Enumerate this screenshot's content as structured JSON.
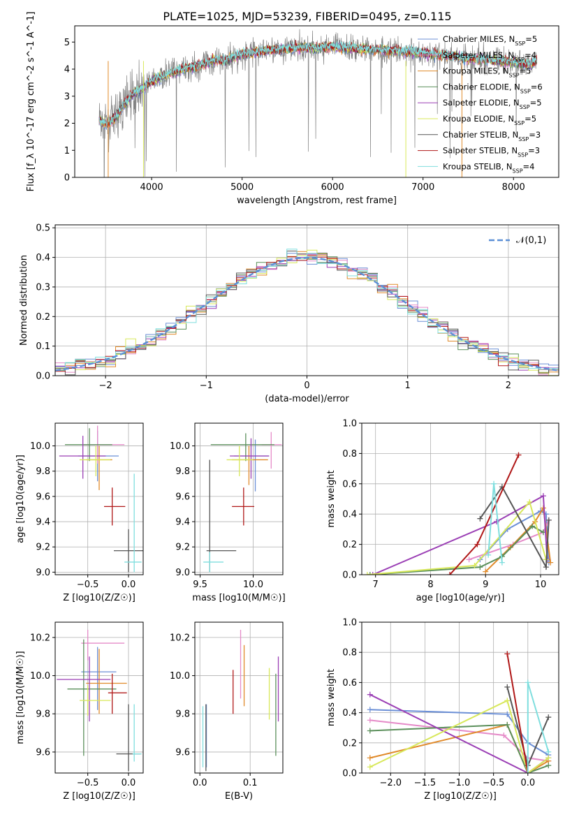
{
  "title": "PLATE=1025, MJD=53239, FIBERID=0495, z=0.115",
  "colors": {
    "Chabrier MILES": "#6b8fd6",
    "Salpeter MILES": "#e58ac8",
    "Kroupa MILES": "#e08a2a",
    "Chabrier ELODIE": "#5a8f5a",
    "Salpeter ELODIE": "#9b3fb5",
    "Kroupa ELODIE": "#d8e85a",
    "Chabrier STELIB": "#555555",
    "Salpeter STELIB": "#b01818",
    "Kroupa STELIB": "#7fdede",
    "data": "#808080",
    "normal": "#5b8fd6"
  },
  "chart_data": [
    {
      "id": "spectrum",
      "type": "line",
      "xlabel": "wavelength [Angstrom, rest frame]",
      "ylabel": "Flux [f_λ 10^-17 erg cm^-2 s^-1 A^-1]",
      "xlim": [
        3150,
        8500
      ],
      "ylim": [
        0,
        5.6
      ],
      "xticks": [
        "4000",
        "5000",
        "6000",
        "7000",
        "8000"
      ],
      "yticks": [
        "0",
        "1",
        "2",
        "3",
        "4",
        "5"
      ],
      "legend_position": "top-right",
      "x": [
        3420,
        3500,
        3600,
        3700,
        3800,
        3900,
        4000,
        4100,
        4200,
        4300,
        4400,
        4500,
        4600,
        4700,
        4800,
        4900,
        5000,
        5100,
        5200,
        5300,
        5400,
        5500,
        5600,
        5700,
        5800,
        5900,
        6000,
        6100,
        6200,
        6300,
        6400,
        6500,
        6600,
        6700,
        6800,
        6900,
        7000,
        7100,
        7200,
        7300,
        7400,
        7500,
        7600,
        7700,
        7800,
        7900,
        8000,
        8100,
        8200,
        8260
      ],
      "model_flux": [
        2.1,
        1.95,
        2.2,
        2.7,
        3.1,
        3.3,
        3.55,
        3.7,
        3.85,
        3.95,
        4.05,
        4.1,
        4.2,
        4.35,
        4.3,
        4.45,
        4.55,
        4.6,
        4.65,
        4.7,
        4.72,
        4.75,
        4.78,
        4.8,
        4.78,
        4.8,
        4.82,
        4.8,
        4.78,
        4.76,
        4.75,
        4.72,
        4.7,
        4.68,
        4.65,
        4.62,
        4.6,
        4.55,
        4.52,
        4.5,
        4.45,
        4.4,
        4.38,
        4.35,
        4.3,
        4.28,
        4.25,
        4.2,
        4.2,
        4.3
      ],
      "series": [
        {
          "name": "Chabrier MILES",
          "n_ssp": "5"
        },
        {
          "name": "Salpeter MILES",
          "n_ssp": "4"
        },
        {
          "name": "Kroupa MILES",
          "n_ssp": "5"
        },
        {
          "name": "Chabrier ELODIE",
          "n_ssp": "6"
        },
        {
          "name": "Salpeter ELODIE",
          "n_ssp": "5"
        },
        {
          "name": "Kroupa ELODIE",
          "n_ssp": "5"
        },
        {
          "name": "Chabrier STELIB",
          "n_ssp": "3"
        },
        {
          "name": "Salpeter STELIB",
          "n_ssp": "3"
        },
        {
          "name": "Kroupa STELIB",
          "n_ssp": "4"
        }
      ]
    },
    {
      "id": "residuals",
      "type": "line",
      "xlabel": "(data-model)/error",
      "ylabel": "Normed distribution",
      "xlim": [
        -2.5,
        2.5
      ],
      "ylim": [
        0,
        0.51
      ],
      "xticks": [
        "−2",
        "−1",
        "0",
        "1",
        "2"
      ],
      "yticks": [
        "0.0",
        "0.1",
        "0.2",
        "0.3",
        "0.4",
        "0.5"
      ],
      "legend": "𝒩(0,1)",
      "legend_position": "top-right"
    },
    {
      "id": "age_vs_Z",
      "type": "scatter",
      "xlabel": "Z [log10(Z/Z☉)]",
      "ylabel": "age  [log10(age/yr)]",
      "xlim": [
        -0.9,
        0.18
      ],
      "ylim": [
        8.98,
        10.18
      ],
      "xticks": [
        "−0.5",
        "0.0"
      ],
      "yticks": [
        "9.0",
        "9.2",
        "9.4",
        "9.6",
        "9.8",
        "10.0"
      ],
      "points": [
        {
          "series": "Chabrier MILES",
          "x": -0.38,
          "y": 9.92,
          "xlo": -0.62,
          "xhi": -0.12,
          "ylo": 9.72,
          "yhi": 10.12
        },
        {
          "series": "Salpeter MILES",
          "x": -0.38,
          "y": 10.01,
          "xlo": -0.55,
          "xhi": -0.05,
          "ylo": 9.86,
          "yhi": 10.16
        },
        {
          "series": "Kroupa MILES",
          "x": -0.36,
          "y": 9.89,
          "xlo": -0.52,
          "xhi": -0.2,
          "ylo": 9.65,
          "yhi": 10.0
        },
        {
          "series": "Chabrier ELODIE",
          "x": -0.48,
          "y": 10.01,
          "xlo": -0.78,
          "xhi": -0.2,
          "ylo": 9.88,
          "yhi": 10.14
        },
        {
          "series": "Salpeter ELODIE",
          "x": -0.56,
          "y": 9.92,
          "xlo": -0.85,
          "xhi": -0.28,
          "ylo": 9.74,
          "yhi": 10.08
        },
        {
          "series": "Kroupa ELODIE",
          "x": -0.4,
          "y": 9.89,
          "xlo": -0.6,
          "xhi": -0.22,
          "ylo": 9.76,
          "yhi": 10.0
        },
        {
          "series": "Chabrier STELIB",
          "x": 0.0,
          "y": 9.17,
          "xlo": -0.18,
          "xhi": 0.18,
          "ylo": 9.0,
          "yhi": 9.34
        },
        {
          "series": "Salpeter STELIB",
          "x": -0.2,
          "y": 9.52,
          "xlo": -0.3,
          "xhi": -0.04,
          "ylo": 9.37,
          "yhi": 9.67
        },
        {
          "series": "Kroupa STELIB",
          "x": 0.07,
          "y": 9.08,
          "xlo": -0.05,
          "xhi": 0.16,
          "ylo": 9.0,
          "yhi": 9.78
        }
      ]
    },
    {
      "id": "age_vs_mass",
      "type": "scatter",
      "xlabel": "mass [log10(M/M☉)]",
      "ylabel": "",
      "xlim": [
        9.45,
        10.28
      ],
      "ylim": [
        8.98,
        10.18
      ],
      "xticks": [
        "9.5",
        "10.0"
      ],
      "yticks": [
        "9.0",
        "9.2",
        "9.4",
        "9.6",
        "9.8",
        "10.0"
      ],
      "points": [
        {
          "series": "Chabrier MILES",
          "x": 10.02,
          "y": 9.92,
          "xlo": 9.82,
          "xhi": 10.15,
          "ylo": 9.64,
          "yhi": 10.05
        },
        {
          "series": "Salpeter MILES",
          "x": 10.17,
          "y": 10.01,
          "xlo": 10.08,
          "xhi": 10.27,
          "ylo": 9.82,
          "yhi": 10.11
        },
        {
          "series": "Kroupa MILES",
          "x": 9.96,
          "y": 9.89,
          "xlo": 9.8,
          "xhi": 10.14,
          "ylo": 9.69,
          "yhi": 10.0
        },
        {
          "series": "Chabrier ELODIE",
          "x": 9.93,
          "y": 10.01,
          "xlo": 9.6,
          "xhi": 10.2,
          "ylo": 9.88,
          "yhi": 10.1
        },
        {
          "series": "Salpeter ELODIE",
          "x": 9.98,
          "y": 9.92,
          "xlo": 9.78,
          "xhi": 10.15,
          "ylo": 9.74,
          "yhi": 10.06
        },
        {
          "series": "Kroupa ELODIE",
          "x": 9.87,
          "y": 9.89,
          "xlo": 9.75,
          "xhi": 10.0,
          "ylo": 9.76,
          "yhi": 10.0
        },
        {
          "series": "Chabrier STELIB",
          "x": 9.59,
          "y": 9.17,
          "xlo": 9.56,
          "xhi": 9.84,
          "ylo": 9.0,
          "yhi": 9.89
        },
        {
          "series": "Salpeter STELIB",
          "x": 9.91,
          "y": 9.52,
          "xlo": 9.8,
          "xhi": 10.01,
          "ylo": 9.37,
          "yhi": 9.67
        },
        {
          "series": "Kroupa STELIB",
          "x": 9.59,
          "y": 9.08,
          "xlo": 9.53,
          "xhi": 9.72,
          "ylo": 9.0,
          "yhi": 9.16
        }
      ]
    },
    {
      "id": "mass_weight_vs_age",
      "type": "line",
      "xlabel": "age  [log10(age/yr)]",
      "ylabel": "mass weight",
      "xlim": [
        6.75,
        10.33
      ],
      "ylim": [
        0,
        1.0
      ],
      "xticks": [
        "7",
        "8",
        "9",
        "10"
      ],
      "yticks": [
        "0.0",
        "0.2",
        "0.4",
        "0.6",
        "0.8",
        "1.0"
      ],
      "series": [
        {
          "name": "Chabrier MILES",
          "x": [
            8.9,
            9.4,
            10.0,
            10.1,
            10.15
          ],
          "y": [
            0.1,
            0.3,
            0.42,
            0.4,
            0.08
          ]
        },
        {
          "name": "Salpeter MILES",
          "x": [
            8.7,
            9.5,
            10.05,
            10.15
          ],
          "y": [
            0.1,
            0.2,
            0.28,
            0.36
          ]
        },
        {
          "name": "Kroupa MILES",
          "x": [
            9.0,
            9.45,
            9.9,
            10.05,
            10.18
          ],
          "y": [
            0.02,
            0.18,
            0.35,
            0.44,
            0.08
          ]
        },
        {
          "name": "Chabrier ELODIE",
          "x": [
            6.9,
            8.9,
            9.3,
            9.85,
            10.05
          ],
          "y": [
            0.0,
            0.05,
            0.12,
            0.32,
            0.28
          ]
        },
        {
          "name": "Salpeter ELODIE",
          "x": [
            6.95,
            9.2,
            10.05,
            10.12
          ],
          "y": [
            0.0,
            0.35,
            0.52,
            0.1
          ]
        },
        {
          "name": "Kroupa ELODIE",
          "x": [
            6.85,
            8.8,
            9.8,
            10.1
          ],
          "y": [
            0.0,
            0.06,
            0.48,
            0.1
          ]
        },
        {
          "name": "Chabrier STELIB",
          "x": [
            8.9,
            9.3,
            10.1,
            10.15
          ],
          "y": [
            0.37,
            0.58,
            0.05,
            0.36
          ]
        },
        {
          "name": "Salpeter STELIB",
          "x": [
            8.35,
            8.85,
            9.6
          ],
          "y": [
            0.0,
            0.2,
            0.79
          ]
        },
        {
          "name": "Kroupa STELIB",
          "x": [
            9.05,
            9.15,
            9.3
          ],
          "y": [
            0.13,
            0.6,
            0.08
          ]
        }
      ]
    },
    {
      "id": "mass_vs_Z",
      "type": "scatter",
      "xlabel": "Z [log10(Z/Z☉)]",
      "ylabel": "mass [log10(M/M☉)]",
      "xlim": [
        -0.9,
        0.18
      ],
      "ylim": [
        9.49,
        10.28
      ],
      "xticks": [
        "−0.5",
        "0.0"
      ],
      "yticks": [
        "9.6",
        "9.8",
        "10.0",
        "10.2"
      ],
      "points": [
        {
          "series": "Chabrier MILES",
          "x": -0.38,
          "y": 10.02,
          "xlo": -0.58,
          "xhi": -0.15,
          "ylo": 9.82,
          "yhi": 10.15
        },
        {
          "series": "Salpeter MILES",
          "x": -0.5,
          "y": 10.17,
          "xlo": -0.58,
          "xhi": -0.05,
          "ylo": 10.08,
          "yhi": 10.24
        },
        {
          "series": "Kroupa MILES",
          "x": -0.36,
          "y": 9.96,
          "xlo": -0.52,
          "xhi": -0.02,
          "ylo": 9.8,
          "yhi": 10.14
        },
        {
          "series": "Chabrier ELODIE",
          "x": -0.55,
          "y": 9.93,
          "xlo": -0.75,
          "xhi": -0.15,
          "ylo": 9.58,
          "yhi": 10.19
        },
        {
          "series": "Salpeter ELODIE",
          "x": -0.48,
          "y": 9.98,
          "xlo": -0.88,
          "xhi": -0.22,
          "ylo": 9.76,
          "yhi": 10.1
        },
        {
          "series": "Kroupa ELODIE",
          "x": -0.5,
          "y": 9.87,
          "xlo": -0.6,
          "xhi": -0.22,
          "ylo": 9.79,
          "yhi": 9.95
        },
        {
          "series": "Chabrier STELIB",
          "x": 0.0,
          "y": 9.59,
          "xlo": -0.15,
          "xhi": 0.15,
          "ylo": 9.5,
          "yhi": 9.85
        },
        {
          "series": "Salpeter STELIB",
          "x": -0.2,
          "y": 9.91,
          "xlo": -0.25,
          "xhi": -0.02,
          "ylo": 9.8,
          "yhi": 10.01
        },
        {
          "series": "Kroupa STELIB",
          "x": 0.07,
          "y": 9.59,
          "xlo": 0.05,
          "xhi": 0.16,
          "ylo": 9.55,
          "yhi": 9.85
        }
      ]
    },
    {
      "id": "mass_vs_EBV",
      "type": "scatter",
      "xlabel": "E(B-V)",
      "ylabel": "",
      "xlim": [
        -0.01,
        0.165
      ],
      "ylim": [
        9.49,
        10.28
      ],
      "xticks": [
        "0.0",
        "0.1"
      ],
      "yticks": [
        "9.6",
        "9.8",
        "10.0",
        "10.2"
      ],
      "points": [
        {
          "series": "Chabrier MILES",
          "x": 0.013,
          "y": 9.68,
          "ylo": 9.52,
          "yhi": 9.85
        },
        {
          "series": "Salpeter MILES",
          "x": 0.081,
          "y": 10.06,
          "ylo": 9.88,
          "yhi": 10.24
        },
        {
          "series": "Kroupa MILES",
          "x": 0.088,
          "y": 9.99,
          "ylo": 9.84,
          "yhi": 10.16
        },
        {
          "series": "Chabrier ELODIE",
          "x": 0.151,
          "y": 9.8,
          "ylo": 9.58,
          "yhi": 10.01
        },
        {
          "series": "Salpeter ELODIE",
          "x": 0.156,
          "y": 9.93,
          "ylo": 9.76,
          "yhi": 10.1
        },
        {
          "series": "Kroupa ELODIE",
          "x": 0.138,
          "y": 9.9,
          "ylo": 9.77,
          "yhi": 10.04
        },
        {
          "series": "Chabrier STELIB",
          "x": 0.012,
          "y": 9.68,
          "ylo": 9.5,
          "yhi": 9.85
        },
        {
          "series": "Salpeter STELIB",
          "x": 0.066,
          "y": 9.86,
          "ylo": 9.8,
          "yhi": 10.03
        },
        {
          "series": "Kroupa STELIB",
          "x": 0.006,
          "y": 9.68,
          "ylo": 9.52,
          "yhi": 9.84
        }
      ]
    },
    {
      "id": "mass_weight_vs_Z",
      "type": "line",
      "xlabel": "Z [log10(Z/Z☉)]",
      "ylabel": "mass weight",
      "xlim": [
        -2.42,
        0.45
      ],
      "ylim": [
        0,
        1.0
      ],
      "xticks": [
        "−2.0",
        "−1.5",
        "−1.0",
        "−0.5",
        "0.0"
      ],
      "yticks": [
        "0.0",
        "0.2",
        "0.4",
        "0.6",
        "0.8",
        "1.0"
      ],
      "series": [
        {
          "name": "Chabrier MILES",
          "x": [
            -2.3,
            -0.3,
            0.0,
            0.3
          ],
          "y": [
            0.42,
            0.39,
            0.2,
            0.12
          ]
        },
        {
          "name": "Salpeter MILES",
          "x": [
            -2.3,
            -0.35,
            0.0,
            0.3
          ],
          "y": [
            0.35,
            0.25,
            0.1,
            0.08
          ]
        },
        {
          "name": "Kroupa MILES",
          "x": [
            -2.3,
            -0.3,
            0.0,
            0.3
          ],
          "y": [
            0.1,
            0.32,
            0.0,
            0.08
          ]
        },
        {
          "name": "Chabrier ELODIE",
          "x": [
            -2.3,
            -0.3,
            0.0,
            0.3
          ],
          "y": [
            0.28,
            0.32,
            0.0,
            0.05
          ]
        },
        {
          "name": "Salpeter ELODIE",
          "x": [
            -2.3,
            0.0,
            0.3
          ],
          "y": [
            0.52,
            0.0,
            0.1
          ]
        },
        {
          "name": "Kroupa ELODIE",
          "x": [
            -2.3,
            -0.3,
            0.0,
            0.3
          ],
          "y": [
            0.04,
            0.48,
            0.0,
            0.1
          ]
        },
        {
          "name": "Chabrier STELIB",
          "x": [
            -0.3,
            0.0,
            0.3
          ],
          "y": [
            0.57,
            0.05,
            0.37
          ]
        },
        {
          "name": "Salpeter STELIB",
          "x": [
            -0.3,
            0.0
          ],
          "y": [
            0.79,
            0.0
          ]
        },
        {
          "name": "Kroupa STELIB",
          "x": [
            0.0,
            0.0,
            0.3
          ],
          "y": [
            0.0,
            0.6,
            0.14
          ]
        }
      ]
    }
  ]
}
